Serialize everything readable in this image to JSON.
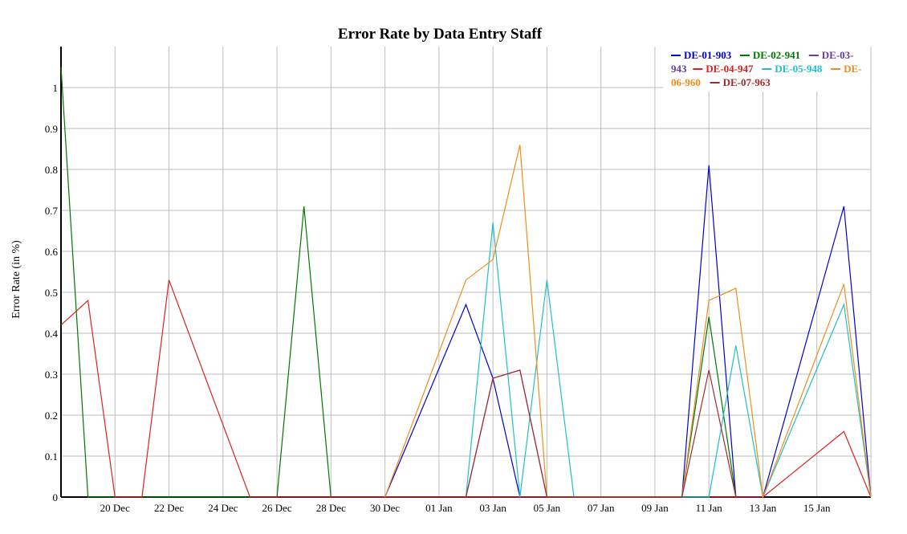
{
  "chart_data": {
    "type": "line",
    "title": "Error Rate by Data Entry Staff",
    "xlabel": "",
    "ylabel": "Error Rate (in %)",
    "x_axis": {
      "type": "date",
      "start": "2015-12-18",
      "end": "2016-01-17",
      "tick_labels": [
        {
          "date": "2015-12-20",
          "label": "20 Dec"
        },
        {
          "date": "2015-12-22",
          "label": "22 Dec"
        },
        {
          "date": "2015-12-24",
          "label": "24 Dec"
        },
        {
          "date": "2015-12-26",
          "label": "26 Dec"
        },
        {
          "date": "2015-12-28",
          "label": "28 Dec"
        },
        {
          "date": "2015-12-30",
          "label": "30 Dec"
        },
        {
          "date": "2016-01-01",
          "label": "01 Jan"
        },
        {
          "date": "2016-01-03",
          "label": "03 Jan"
        },
        {
          "date": "2016-01-05",
          "label": "05 Jan"
        },
        {
          "date": "2016-01-07",
          "label": "07 Jan"
        },
        {
          "date": "2016-01-09",
          "label": "09 Jan"
        },
        {
          "date": "2016-01-11",
          "label": "11 Jan"
        },
        {
          "date": "2016-01-13",
          "label": "13 Jan"
        },
        {
          "date": "2016-01-15",
          "label": "15 Jan"
        }
      ]
    },
    "ylim": [
      0,
      1.1
    ],
    "y_ticks": [
      0,
      0.1,
      0.2,
      0.3,
      0.4,
      0.5,
      0.6,
      0.7,
      0.8,
      0.9,
      1
    ],
    "grid": true,
    "legend_placement": "top-right",
    "series": [
      {
        "name": "DE-01-903",
        "color": "#0000cc",
        "points": [
          {
            "x": "2015-12-30",
            "y": 0
          },
          {
            "x": "2016-01-02",
            "y": 0.47
          },
          {
            "x": "2016-01-03",
            "y": 0.29
          },
          {
            "x": "2016-01-04",
            "y": 0
          },
          {
            "x": "2016-01-10",
            "y": 0
          },
          {
            "x": "2016-01-11",
            "y": 0.81
          },
          {
            "x": "2016-01-12",
            "y": 0
          },
          {
            "x": "2016-01-13",
            "y": 0
          },
          {
            "x": "2016-01-16",
            "y": 0.71
          },
          {
            "x": "2016-01-17",
            "y": 0
          }
        ]
      },
      {
        "name": "DE-02-941",
        "color": "#007700",
        "points": [
          {
            "x": "2015-12-18",
            "y": 1.05
          },
          {
            "x": "2015-12-19",
            "y": 0
          },
          {
            "x": "2015-12-26",
            "y": 0
          },
          {
            "x": "2015-12-27",
            "y": 0.71
          },
          {
            "x": "2015-12-28",
            "y": 0
          },
          {
            "x": "2016-01-10",
            "y": 0
          },
          {
            "x": "2016-01-11",
            "y": 0.44
          },
          {
            "x": "2016-01-12",
            "y": 0
          }
        ]
      },
      {
        "name": "DE-03-943",
        "color": "#6a3d9a",
        "points": [
          {
            "x": "2016-01-02",
            "y": 0
          },
          {
            "x": "2016-01-03",
            "y": 0.29
          },
          {
            "x": "2016-01-04",
            "y": 0.31
          },
          {
            "x": "2016-01-05",
            "y": 0
          }
        ]
      },
      {
        "name": "DE-04-947",
        "color": "#dd2020",
        "points": [
          {
            "x": "2015-12-18",
            "y": 0.42
          },
          {
            "x": "2015-12-19",
            "y": 0.48
          },
          {
            "x": "2015-12-20",
            "y": 0
          },
          {
            "x": "2015-12-21",
            "y": 0
          },
          {
            "x": "2015-12-22",
            "y": 0.53
          },
          {
            "x": "2015-12-25",
            "y": 0
          },
          {
            "x": "2016-01-13",
            "y": 0
          },
          {
            "x": "2016-01-16",
            "y": 0.16
          },
          {
            "x": "2016-01-17",
            "y": 0
          }
        ]
      },
      {
        "name": "DE-05-948",
        "color": "#1fbfc8",
        "points": [
          {
            "x": "2016-01-02",
            "y": 0
          },
          {
            "x": "2016-01-03",
            "y": 0.67
          },
          {
            "x": "2016-01-04",
            "y": 0
          },
          {
            "x": "2016-01-05",
            "y": 0.53
          },
          {
            "x": "2016-01-06",
            "y": 0
          },
          {
            "x": "2016-01-11",
            "y": 0
          },
          {
            "x": "2016-01-12",
            "y": 0.37
          },
          {
            "x": "2016-01-13",
            "y": 0
          },
          {
            "x": "2016-01-16",
            "y": 0.47
          },
          {
            "x": "2016-01-17",
            "y": 0
          }
        ]
      },
      {
        "name": "DE-06-960",
        "color": "#f08c1e",
        "points": [
          {
            "x": "2015-12-30",
            "y": 0
          },
          {
            "x": "2016-01-02",
            "y": 0.53
          },
          {
            "x": "2016-01-03",
            "y": 0.58
          },
          {
            "x": "2016-01-04",
            "y": 0.86
          },
          {
            "x": "2016-01-05",
            "y": 0
          },
          {
            "x": "2016-01-10",
            "y": 0
          },
          {
            "x": "2016-01-11",
            "y": 0.48
          },
          {
            "x": "2016-01-12",
            "y": 0.51
          },
          {
            "x": "2016-01-13",
            "y": 0
          },
          {
            "x": "2016-01-16",
            "y": 0.52
          },
          {
            "x": "2016-01-17",
            "y": 0
          }
        ]
      },
      {
        "name": "DE-07-963",
        "color": "#a52a2a",
        "points": [
          {
            "x": "2016-01-02",
            "y": 0
          },
          {
            "x": "2016-01-03",
            "y": 0.29
          },
          {
            "x": "2016-01-04",
            "y": 0.31
          },
          {
            "x": "2016-01-05",
            "y": 0
          },
          {
            "x": "2016-01-10",
            "y": 0
          },
          {
            "x": "2016-01-11",
            "y": 0.31
          },
          {
            "x": "2016-01-12",
            "y": 0
          }
        ]
      }
    ],
    "legend_lines": [
      [
        "DE-01-903",
        "DE-02-941",
        "DE-03-"
      ],
      [
        "943",
        "DE-04-947",
        "DE-05-948",
        "DE-"
      ],
      [
        "06-960",
        "DE-07-963"
      ]
    ]
  }
}
